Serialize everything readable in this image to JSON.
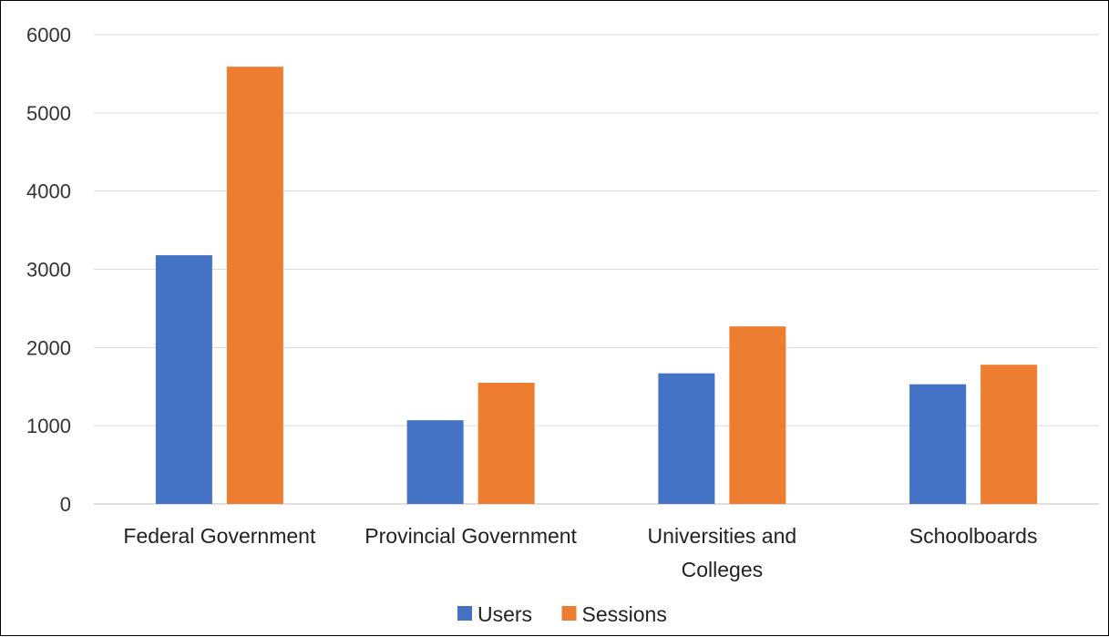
{
  "chart_data": {
    "type": "bar",
    "categories": [
      [
        "Federal Government"
      ],
      [
        "Provincial Government"
      ],
      [
        "Universities and",
        "Colleges"
      ],
      [
        "Schoolboards"
      ]
    ],
    "series": [
      {
        "name": "Users",
        "color": "#4472C4",
        "values": [
          3180,
          1070,
          1670,
          1530
        ]
      },
      {
        "name": "Sessions",
        "color": "#ED7D31",
        "values": [
          5590,
          1550,
          2270,
          1780
        ]
      }
    ],
    "ylim": [
      0,
      6000
    ],
    "yticks": [
      0,
      1000,
      2000,
      3000,
      4000,
      5000,
      6000
    ],
    "grid": true,
    "gridColor": "#D9D9D9",
    "legend": "bottom-center"
  }
}
